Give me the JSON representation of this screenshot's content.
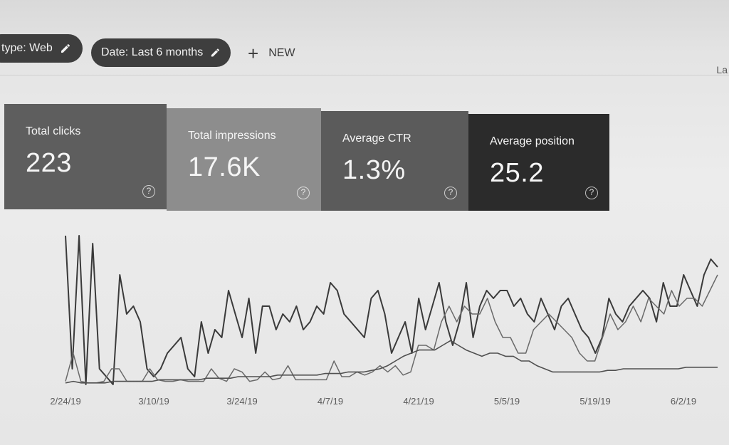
{
  "filters": {
    "type_chip": "type: Web",
    "date_chip": "Date: Last 6 months",
    "new_label": "NEW",
    "corner_text": "La"
  },
  "metrics": [
    {
      "label": "Total clicks",
      "value": "223"
    },
    {
      "label": "Total impressions",
      "value": "17.6K"
    },
    {
      "label": "Average CTR",
      "value": "1.3%"
    },
    {
      "label": "Average position",
      "value": "25.2"
    }
  ],
  "help_glyph": "?",
  "chart_data": {
    "type": "line",
    "x_labels": [
      "2/24/19",
      "3/10/19",
      "3/24/19",
      "4/7/19",
      "4/21/19",
      "5/5/19",
      "5/19/19",
      "6/2/19"
    ],
    "ylim": [
      0,
      100
    ],
    "grid": false,
    "series": [
      {
        "values": [
          95,
          10,
          95,
          0,
          90,
          10,
          5,
          0,
          70,
          45,
          50,
          40,
          10,
          5,
          10,
          20,
          25,
          30,
          10,
          5,
          40,
          20,
          35,
          30,
          60,
          45,
          30,
          55,
          20,
          50,
          50,
          35,
          45,
          40,
          50,
          35,
          40,
          50,
          45,
          65,
          60,
          45,
          40,
          35,
          30,
          55,
          60,
          45,
          20,
          30,
          40,
          20,
          55,
          35,
          50,
          65,
          40,
          25,
          40,
          65,
          30,
          50,
          60,
          55,
          60,
          60,
          50,
          55,
          45,
          40,
          55,
          45,
          35,
          50,
          55,
          45,
          35,
          30,
          20,
          30,
          55,
          45,
          40,
          50,
          55,
          60,
          55,
          40,
          65,
          50,
          50,
          70,
          60,
          50,
          70,
          80,
          75
        ]
      },
      {
        "values": [
          2,
          20,
          2,
          1,
          1,
          2,
          10,
          10,
          2,
          2,
          2,
          10,
          3,
          2,
          2,
          3,
          2,
          2,
          2,
          10,
          4,
          2,
          10,
          8,
          2,
          3,
          8,
          3,
          4,
          12,
          3,
          3,
          3,
          3,
          3,
          15,
          5,
          5,
          8,
          6,
          8,
          12,
          8,
          12,
          6,
          8,
          25,
          25,
          22,
          40,
          50,
          40,
          50,
          45,
          45,
          55,
          40,
          30,
          30,
          20,
          20,
          35,
          40,
          45,
          40,
          35,
          30,
          20,
          15,
          15,
          30,
          45,
          35,
          40,
          50,
          40,
          55,
          50,
          45,
          60,
          50,
          55,
          55,
          50,
          60,
          70
        ]
      },
      {
        "values": [
          1,
          2,
          1,
          1,
          1,
          1,
          2,
          2,
          2,
          2,
          2,
          2,
          3,
          3,
          3,
          3,
          3,
          3,
          4,
          4,
          4,
          4,
          5,
          5,
          5,
          5,
          5,
          6,
          6,
          6,
          6,
          6,
          6,
          7,
          7,
          7,
          8,
          8,
          8,
          9,
          10,
          12,
          15,
          18,
          20,
          22,
          22,
          22,
          25,
          28,
          25,
          22,
          20,
          18,
          20,
          20,
          18,
          18,
          15,
          15,
          12,
          10,
          8,
          8,
          8,
          8,
          8,
          8,
          8,
          9,
          9,
          10,
          10,
          10,
          10,
          10,
          10,
          10,
          10,
          11,
          11,
          11,
          11,
          11
        ]
      }
    ]
  }
}
